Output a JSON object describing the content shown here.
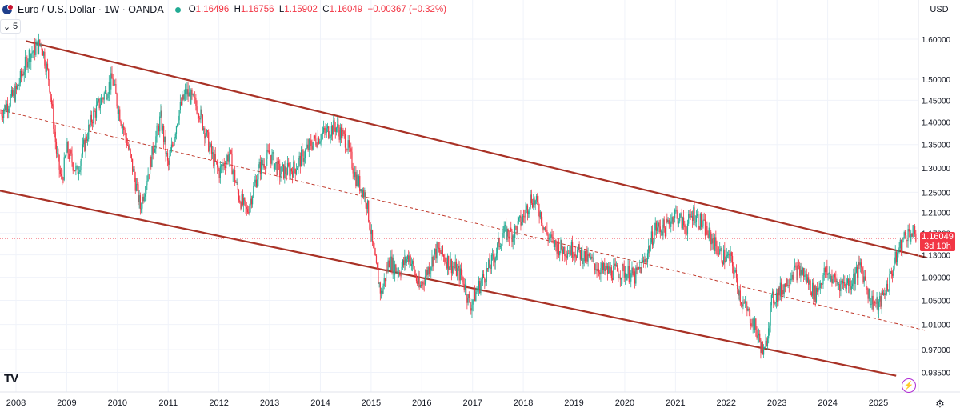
{
  "header": {
    "title": "Euro / U.S. Dollar · 1W · OANDA",
    "open_label": "O",
    "open": "1.16496",
    "high_label": "H",
    "high": "1.16756",
    "low_label": "L",
    "low": "1.15902",
    "close_label": "C",
    "close": "1.16049",
    "change": "−0.00367 (−0.32%)"
  },
  "collapse_button": "5",
  "currency": "USD",
  "logo": "TV",
  "last_price": {
    "value": "1.16049",
    "countdown": "3d 10h"
  },
  "colors": {
    "up": "#22ab94",
    "down": "#f23645",
    "channel": "#a93226",
    "midline": "#c0392b",
    "price_line": "#f23645"
  },
  "chart_data": {
    "type": "candlestick",
    "symbol": "EURUSD",
    "interval": "1W",
    "y_scale": "log",
    "ylim": [
      0.9,
      1.68
    ],
    "y_ticks": [
      "1.60000",
      "1.50000",
      "1.45000",
      "1.40000",
      "1.35000",
      "1.30000",
      "1.25000",
      "1.21000",
      "1.17000",
      "1.13000",
      "1.09000",
      "1.05000",
      "1.01000",
      "0.97000",
      "0.93500"
    ],
    "y_tick_values": [
      1.6,
      1.5,
      1.45,
      1.4,
      1.35,
      1.3,
      1.25,
      1.21,
      1.17,
      1.13,
      1.09,
      1.05,
      1.01,
      0.97,
      0.935
    ],
    "x_ticks": [
      "2008",
      "2009",
      "2010",
      "2011",
      "2012",
      "2013",
      "2014",
      "2015",
      "2016",
      "2017",
      "2018",
      "2019",
      "2020",
      "2021",
      "2022",
      "2023",
      "2024",
      "2025"
    ],
    "x_range": [
      2008.0,
      2025.95
    ],
    "price_path": [
      [
        2007.7,
        1.42
      ],
      [
        2008.0,
        1.47
      ],
      [
        2008.25,
        1.56
      ],
      [
        2008.5,
        1.59
      ],
      [
        2008.65,
        1.5
      ],
      [
        2008.8,
        1.33
      ],
      [
        2008.9,
        1.27
      ],
      [
        2009.0,
        1.34
      ],
      [
        2009.2,
        1.29
      ],
      [
        2009.5,
        1.41
      ],
      [
        2009.9,
        1.5
      ],
      [
        2010.0,
        1.44
      ],
      [
        2010.2,
        1.35
      ],
      [
        2010.45,
        1.22
      ],
      [
        2010.6,
        1.29
      ],
      [
        2010.85,
        1.41
      ],
      [
        2011.0,
        1.3
      ],
      [
        2011.2,
        1.42
      ],
      [
        2011.35,
        1.47
      ],
      [
        2011.6,
        1.43
      ],
      [
        2011.85,
        1.33
      ],
      [
        2012.0,
        1.29
      ],
      [
        2012.2,
        1.33
      ],
      [
        2012.4,
        1.24
      ],
      [
        2012.55,
        1.21
      ],
      [
        2012.8,
        1.3
      ],
      [
        2013.0,
        1.33
      ],
      [
        2013.2,
        1.29
      ],
      [
        2013.5,
        1.3
      ],
      [
        2013.8,
        1.35
      ],
      [
        2014.0,
        1.37
      ],
      [
        2014.3,
        1.39
      ],
      [
        2014.5,
        1.36
      ],
      [
        2014.7,
        1.28
      ],
      [
        2014.9,
        1.24
      ],
      [
        2015.05,
        1.13
      ],
      [
        2015.2,
        1.06
      ],
      [
        2015.35,
        1.12
      ],
      [
        2015.55,
        1.1
      ],
      [
        2015.75,
        1.13
      ],
      [
        2015.95,
        1.07
      ],
      [
        2016.1,
        1.1
      ],
      [
        2016.3,
        1.14
      ],
      [
        2016.6,
        1.11
      ],
      [
        2016.8,
        1.09
      ],
      [
        2016.95,
        1.04
      ],
      [
        2017.1,
        1.07
      ],
      [
        2017.4,
        1.12
      ],
      [
        2017.6,
        1.17
      ],
      [
        2017.8,
        1.17
      ],
      [
        2018.0,
        1.2
      ],
      [
        2018.15,
        1.24
      ],
      [
        2018.3,
        1.22
      ],
      [
        2018.45,
        1.17
      ],
      [
        2018.6,
        1.15
      ],
      [
        2018.8,
        1.14
      ],
      [
        2019.0,
        1.14
      ],
      [
        2019.3,
        1.12
      ],
      [
        2019.6,
        1.1
      ],
      [
        2019.8,
        1.1
      ],
      [
        2020.0,
        1.1
      ],
      [
        2020.2,
        1.09
      ],
      [
        2020.4,
        1.12
      ],
      [
        2020.6,
        1.18
      ],
      [
        2020.8,
        1.18
      ],
      [
        2021.0,
        1.21
      ],
      [
        2021.2,
        1.18
      ],
      [
        2021.35,
        1.21
      ],
      [
        2021.5,
        1.19
      ],
      [
        2021.7,
        1.16
      ],
      [
        2021.9,
        1.13
      ],
      [
        2022.1,
        1.12
      ],
      [
        2022.3,
        1.05
      ],
      [
        2022.55,
        1.01
      ],
      [
        2022.75,
        0.96
      ],
      [
        2022.9,
        1.05
      ],
      [
        2023.1,
        1.07
      ],
      [
        2023.3,
        1.1
      ],
      [
        2023.5,
        1.1
      ],
      [
        2023.75,
        1.06
      ],
      [
        2023.95,
        1.1
      ],
      [
        2024.2,
        1.08
      ],
      [
        2024.45,
        1.08
      ],
      [
        2024.65,
        1.11
      ],
      [
        2024.85,
        1.05
      ],
      [
        2025.0,
        1.04
      ],
      [
        2025.2,
        1.08
      ],
      [
        2025.4,
        1.14
      ],
      [
        2025.55,
        1.17
      ],
      [
        2025.7,
        1.17
      ],
      [
        2025.8,
        1.16
      ]
    ],
    "lines": [
      {
        "name": "upper-channel",
        "style": "solid",
        "points": [
          [
            2008.2,
            1.595
          ],
          [
            2025.95,
            1.125
          ]
        ]
      },
      {
        "name": "mid-channel",
        "style": "dashed",
        "points": [
          [
            2007.6,
            1.43
          ],
          [
            2025.95,
            1.0
          ]
        ]
      },
      {
        "name": "lower-channel",
        "style": "solid",
        "points": [
          [
            2007.6,
            1.255
          ],
          [
            2025.35,
            0.93
          ]
        ]
      }
    ],
    "last_price_line": 1.16049
  }
}
